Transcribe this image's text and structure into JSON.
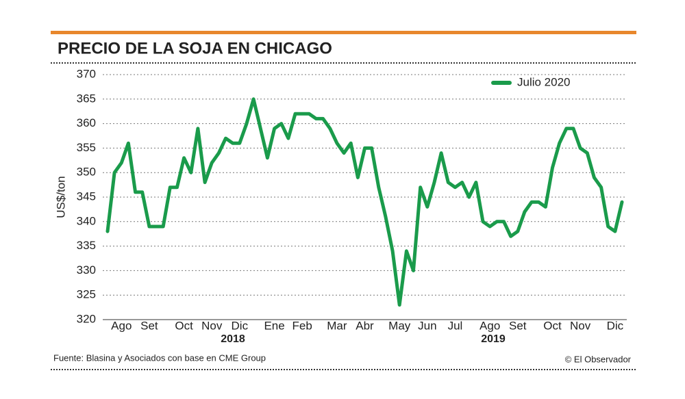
{
  "chart_data": {
    "type": "line",
    "title": "PRECIO DE LA SOJA EN CHICAGO",
    "y_label": "US$/ton",
    "source": "Fuente: Blasina y Asociados con base en CME Group",
    "credit": "© El Observador",
    "year_labels": [
      "2018",
      "2019"
    ],
    "categories": [
      null,
      null,
      "Ago",
      null,
      null,
      null,
      "Set",
      null,
      null,
      null,
      null,
      "Oct",
      null,
      null,
      null,
      "Nov",
      null,
      null,
      null,
      "Dic",
      null,
      null,
      null,
      null,
      "Ene",
      null,
      null,
      null,
      "Feb",
      null,
      null,
      null,
      null,
      "Mar",
      null,
      null,
      null,
      "Abr",
      null,
      null,
      null,
      null,
      "May",
      null,
      null,
      null,
      "Jun",
      null,
      null,
      null,
      "Jul",
      null,
      null,
      null,
      null,
      "Ago",
      null,
      null,
      null,
      "Set",
      null,
      null,
      null,
      null,
      "Oct",
      null,
      null,
      null,
      "Nov",
      null,
      null,
      null,
      null,
      "Dic",
      null
    ],
    "series": [
      {
        "name": "Julio 2020",
        "color": "#1a9b4b",
        "values": [
          338,
          350,
          352,
          356,
          346,
          346,
          339,
          339,
          339,
          347,
          347,
          353,
          350,
          359,
          348,
          352,
          354,
          357,
          356,
          356,
          360,
          365,
          359,
          353,
          359,
          360,
          357,
          362,
          362,
          362,
          361,
          361,
          359,
          356,
          354,
          356,
          349,
          355,
          355,
          347,
          341,
          334,
          323,
          334,
          330,
          347,
          343,
          348,
          354,
          348,
          347,
          348,
          345,
          348,
          340,
          339,
          340,
          340,
          337,
          338,
          342,
          344,
          344,
          343,
          351,
          356,
          359,
          359,
          355,
          354,
          349,
          347,
          339,
          338,
          344
        ]
      }
    ],
    "ylim": [
      320,
      370
    ],
    "yticks": [
      320,
      325,
      330,
      335,
      340,
      345,
      350,
      355,
      360,
      365,
      370
    ],
    "grid": true,
    "legend": "top-right"
  }
}
